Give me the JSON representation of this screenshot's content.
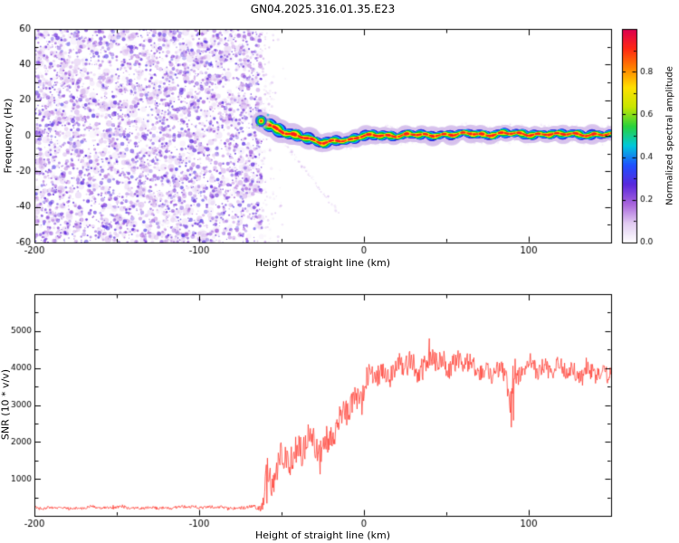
{
  "title": "GN04.2025.316.01.35.E23",
  "chart_data": [
    {
      "type": "heatmap",
      "name": "spectrogram",
      "xlabel": "Height of straight line (km)",
      "ylabel": "Frequency (Hz)",
      "xlim": [
        -200,
        150
      ],
      "ylim": [
        -60,
        60
      ],
      "xtick_values": [
        -200,
        -100,
        0,
        100
      ],
      "xtick_minor": [
        -150,
        -50,
        50,
        150
      ],
      "ytick_values": [
        -60,
        -40,
        -20,
        0,
        20,
        40,
        60
      ],
      "ytick_minor": [
        -50,
        -30,
        -10,
        10,
        30,
        50
      ],
      "noise_region": {
        "x_start": -200,
        "x_end": -62,
        "description": "broadband purple speckle noise, no signal"
      },
      "signal_track": {
        "description": "narrowband signal appearing at -62 km, descending from ~8 Hz to ~0 Hz and continuing near 0-1 Hz to 150 km; red core, yellow/green/cyan/blue rings, pale purple halo",
        "x_km": [
          -63,
          -61,
          -59,
          -57,
          -55,
          -52,
          -49,
          -46,
          -43,
          -40,
          -37,
          -34,
          -31,
          -28,
          -25,
          -22,
          -19,
          -16,
          -13,
          -10,
          -7,
          -4,
          0,
          5,
          10,
          15,
          20,
          25,
          30,
          35,
          40,
          45,
          50,
          55,
          60,
          65,
          70,
          75,
          80,
          85,
          90,
          95,
          100,
          105,
          110,
          115,
          120,
          125,
          130,
          135,
          140,
          145,
          150
        ],
        "freq_hz": [
          8.5,
          7.5,
          6.5,
          5.5,
          4.5,
          3.2,
          2.2,
          1.4,
          0.8,
          0.2,
          -0.6,
          -1.6,
          -2.8,
          -3.8,
          -4.2,
          -3.8,
          -2.8,
          -2.2,
          -2.4,
          -2.6,
          -2.0,
          -1.0,
          -0.4,
          0.2,
          0.4,
          0.2,
          0.0,
          0.4,
          0.6,
          0.4,
          0.2,
          0.6,
          0.8,
          0.6,
          1.0,
          1.2,
          0.8,
          0.6,
          1.0,
          1.4,
          1.2,
          0.8,
          0.6,
          1.0,
          1.2,
          0.8,
          0.6,
          1.0,
          0.8,
          0.6,
          0.8,
          0.6,
          0.8
        ],
        "layer_colors": [
          "#d8c2ee",
          "#2828dc",
          "#00b4ff",
          "#00c828",
          "#ffe600",
          "#ff1e1e"
        ]
      },
      "faint_streak": {
        "x_km": [
          -50,
          -15
        ],
        "freq_hz": [
          -2.5,
          -43.5
        ]
      },
      "colorbar": {
        "label": "Normalized spectral amplitude",
        "range": [
          0,
          1
        ],
        "tick_values": [
          0,
          0.2,
          0.4,
          0.6,
          0.8
        ],
        "tick_labels": [
          "0.0",
          "0.2",
          "0.4",
          "0.6",
          "0.8"
        ],
        "colors": [
          "#ffffff",
          "#e2ccf2",
          "#a864dc",
          "#5a28dc",
          "#1e50ff",
          "#00c8dc",
          "#28d23c",
          "#c8e600",
          "#ffe000",
          "#ff8200",
          "#ff2814",
          "#dc0050"
        ]
      }
    },
    {
      "type": "line",
      "name": "snr",
      "xlabel": "Height of straight line (km)",
      "ylabel": "SNR (10 * v/v)",
      "xlim": [
        -200,
        150
      ],
      "ylim": [
        0,
        6000
      ],
      "xtick_values": [
        -200,
        -100,
        0,
        100
      ],
      "xtick_minor": [
        -150,
        -50,
        50,
        150
      ],
      "ytick_values": [
        1000,
        2000,
        3000,
        4000,
        5000
      ],
      "ytick_minor": [
        500,
        1500,
        2500,
        3500,
        4500,
        5500
      ],
      "line_color": "#ff3b30",
      "description": "noisy SNR trace: flat floor ~250 until -62 km, sharp noisy rise -60..0 km, plateau ~4000-4300 with large fluctuations, narrow dropout/spike near +90 km",
      "envelope": [
        [
          -200,
          220,
          60
        ],
        [
          -120,
          225,
          60
        ],
        [
          -75,
          230,
          65
        ],
        [
          -64,
          240,
          90
        ],
        [
          -61,
          420,
          350
        ],
        [
          -58,
          1250,
          950
        ],
        [
          -56,
          700,
          450
        ],
        [
          -53,
          900,
          600
        ],
        [
          -50,
          1250,
          700
        ],
        [
          -46,
          1500,
          700
        ],
        [
          -42,
          1650,
          650
        ],
        [
          -38,
          1800,
          650
        ],
        [
          -34,
          1950,
          620
        ],
        [
          -30,
          2050,
          620
        ],
        [
          -26,
          2100,
          640
        ],
        [
          -22,
          2250,
          600
        ],
        [
          -18,
          2400,
          580
        ],
        [
          -14,
          2600,
          560
        ],
        [
          -10,
          2850,
          540
        ],
        [
          -6,
          3100,
          520
        ],
        [
          -2,
          3300,
          510
        ],
        [
          2,
          3500,
          500
        ],
        [
          6,
          3650,
          500
        ],
        [
          10,
          3800,
          490
        ],
        [
          15,
          3950,
          490
        ],
        [
          20,
          4050,
          500
        ],
        [
          25,
          4150,
          520
        ],
        [
          30,
          4200,
          560
        ],
        [
          35,
          4250,
          560
        ],
        [
          40,
          4200,
          520
        ],
        [
          45,
          4150,
          500
        ],
        [
          50,
          4100,
          480
        ],
        [
          55,
          4050,
          470
        ],
        [
          60,
          4000,
          450
        ],
        [
          65,
          3950,
          440
        ],
        [
          70,
          3950,
          430
        ],
        [
          75,
          3950,
          430
        ],
        [
          80,
          3950,
          430
        ],
        [
          85,
          3900,
          450
        ],
        [
          88,
          3800,
          700
        ],
        [
          90,
          3650,
          1600
        ],
        [
          92,
          3850,
          800
        ],
        [
          95,
          3950,
          440
        ],
        [
          100,
          3950,
          410
        ],
        [
          105,
          3950,
          400
        ],
        [
          110,
          3950,
          400
        ],
        [
          115,
          3900,
          390
        ],
        [
          120,
          3900,
          390
        ],
        [
          125,
          3950,
          390
        ],
        [
          130,
          3950,
          390
        ],
        [
          135,
          3900,
          390
        ],
        [
          140,
          3900,
          390
        ],
        [
          145,
          3950,
          390
        ],
        [
          150,
          3950,
          390
        ]
      ]
    }
  ]
}
